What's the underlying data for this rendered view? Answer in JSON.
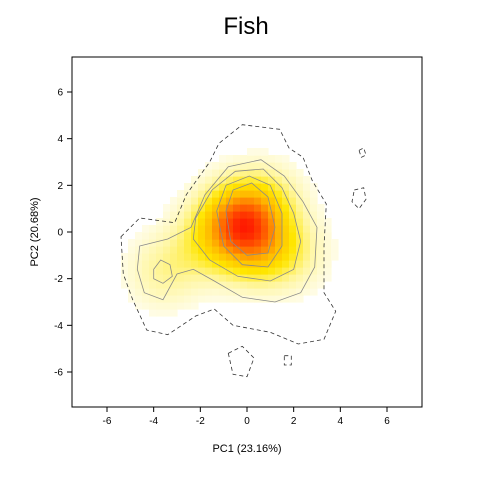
{
  "chart_data": {
    "type": "heatmap",
    "title": "Fish",
    "xlabel": "PC1 (23.16%)",
    "ylabel": "PC2 (20.68%)",
    "xlim": [
      -7.5,
      7.5
    ],
    "ylim": [
      -7.5,
      7.5
    ],
    "x_ticks": [
      "-6",
      "-4",
      "-2",
      "0",
      "2",
      "4",
      "6"
    ],
    "y_ticks": [
      "-6",
      "-4",
      "-2",
      "0",
      "2",
      "4",
      "6"
    ],
    "grid": false,
    "legend": "none",
    "colormap": [
      "#ffffff",
      "#fff6a0",
      "#ffe600",
      "#ffb800",
      "#ff6a00",
      "#ff1a00"
    ],
    "density_peaks": [
      {
        "x": -0.4,
        "y": 0.5,
        "weight": 1.0
      },
      {
        "x": 0.4,
        "y": -0.6,
        "weight": 0.6
      },
      {
        "x": 0.8,
        "y": 1.3,
        "weight": 0.35
      },
      {
        "x": -3.6,
        "y": -1.7,
        "weight": 0.25
      },
      {
        "x": -1.8,
        "y": -0.5,
        "weight": 0.3
      },
      {
        "x": 1.9,
        "y": -0.9,
        "weight": 0.25
      }
    ],
    "contours": [
      {
        "level": "outer",
        "style": "dashed",
        "points": [
          [
            -5.4,
            -0.2
          ],
          [
            -4.6,
            0.6
          ],
          [
            -3.1,
            0.4
          ],
          [
            -2.6,
            1.6
          ],
          [
            -1.6,
            3.0
          ],
          [
            -1.2,
            3.8
          ],
          [
            -0.2,
            4.6
          ],
          [
            1.4,
            4.4
          ],
          [
            1.8,
            3.6
          ],
          [
            2.4,
            3.2
          ],
          [
            2.8,
            2.2
          ],
          [
            3.4,
            1.2
          ],
          [
            3.3,
            -0.6
          ],
          [
            3.3,
            -2.6
          ],
          [
            3.8,
            -3.4
          ],
          [
            3.3,
            -4.6
          ],
          [
            2.2,
            -4.8
          ],
          [
            1.0,
            -4.3
          ],
          [
            -0.6,
            -4.0
          ],
          [
            -1.4,
            -3.3
          ],
          [
            -2.2,
            -3.6
          ],
          [
            -3.4,
            -4.4
          ],
          [
            -4.3,
            -4.2
          ],
          [
            -4.9,
            -2.9
          ],
          [
            -5.3,
            -1.8
          ]
        ]
      },
      {
        "level": "l1",
        "style": "solid",
        "points": [
          [
            -4.6,
            -0.6
          ],
          [
            -3.4,
            -0.3
          ],
          [
            -2.4,
            0.2
          ],
          [
            -1.8,
            1.6
          ],
          [
            -0.8,
            2.8
          ],
          [
            0.6,
            3.1
          ],
          [
            1.6,
            2.4
          ],
          [
            2.4,
            1.3
          ],
          [
            3.0,
            0.2
          ],
          [
            2.9,
            -1.5
          ],
          [
            2.3,
            -2.6
          ],
          [
            1.2,
            -3.0
          ],
          [
            -0.2,
            -2.8
          ],
          [
            -1.4,
            -2.1
          ],
          [
            -2.3,
            -1.6
          ],
          [
            -3.0,
            -1.8
          ],
          [
            -3.6,
            -2.9
          ],
          [
            -4.4,
            -2.6
          ],
          [
            -4.7,
            -1.6
          ]
        ]
      },
      {
        "level": "l2",
        "style": "solid",
        "points": [
          [
            -2.2,
            0.6
          ],
          [
            -1.5,
            1.8
          ],
          [
            -0.5,
            2.6
          ],
          [
            0.7,
            2.7
          ],
          [
            1.5,
            1.9
          ],
          [
            2.0,
            0.8
          ],
          [
            2.3,
            -0.4
          ],
          [
            2.0,
            -1.6
          ],
          [
            1.0,
            -2.1
          ],
          [
            -0.4,
            -1.9
          ],
          [
            -1.6,
            -1.2
          ],
          [
            -2.3,
            -0.3
          ]
        ]
      },
      {
        "level": "l3",
        "style": "solid",
        "points": [
          [
            -1.3,
            0.9
          ],
          [
            -0.9,
            2.0
          ],
          [
            0.1,
            2.4
          ],
          [
            1.0,
            2.0
          ],
          [
            1.5,
            0.8
          ],
          [
            1.5,
            -0.6
          ],
          [
            0.9,
            -1.5
          ],
          [
            -0.2,
            -1.4
          ],
          [
            -1.0,
            -0.6
          ]
        ]
      },
      {
        "level": "l4",
        "style": "solid",
        "points": [
          [
            -0.9,
            0.9
          ],
          [
            -0.6,
            1.8
          ],
          [
            0.2,
            2.1
          ],
          [
            0.9,
            1.5
          ],
          [
            1.2,
            0.2
          ],
          [
            0.9,
            -0.9
          ],
          [
            0.0,
            -1.0
          ],
          [
            -0.7,
            -0.4
          ]
        ]
      },
      {
        "level": "island-left",
        "style": "solid",
        "points": [
          [
            -4.0,
            -1.6
          ],
          [
            -3.7,
            -1.2
          ],
          [
            -3.3,
            -1.4
          ],
          [
            -3.2,
            -1.9
          ],
          [
            -3.6,
            -2.2
          ],
          [
            -4.0,
            -2.0
          ]
        ]
      },
      {
        "level": "island-bottom",
        "style": "dashed",
        "points": [
          [
            -0.8,
            -5.2
          ],
          [
            -0.2,
            -4.9
          ],
          [
            0.3,
            -5.4
          ],
          [
            0.0,
            -6.2
          ],
          [
            -0.6,
            -6.1
          ]
        ]
      },
      {
        "level": "island-right",
        "style": "dashed",
        "points": [
          [
            4.6,
            1.8
          ],
          [
            5.0,
            1.9
          ],
          [
            5.1,
            1.4
          ],
          [
            4.8,
            1.0
          ],
          [
            4.5,
            1.3
          ]
        ]
      },
      {
        "level": "dot-right",
        "style": "dashed",
        "points": [
          [
            4.8,
            3.5
          ],
          [
            5.0,
            3.6
          ],
          [
            5.1,
            3.3
          ],
          [
            4.9,
            3.2
          ]
        ]
      },
      {
        "level": "dot-bottom",
        "style": "dashed",
        "points": [
          [
            1.6,
            -5.3
          ],
          [
            1.9,
            -5.3
          ],
          [
            1.9,
            -5.7
          ],
          [
            1.6,
            -5.7
          ]
        ]
      }
    ]
  }
}
